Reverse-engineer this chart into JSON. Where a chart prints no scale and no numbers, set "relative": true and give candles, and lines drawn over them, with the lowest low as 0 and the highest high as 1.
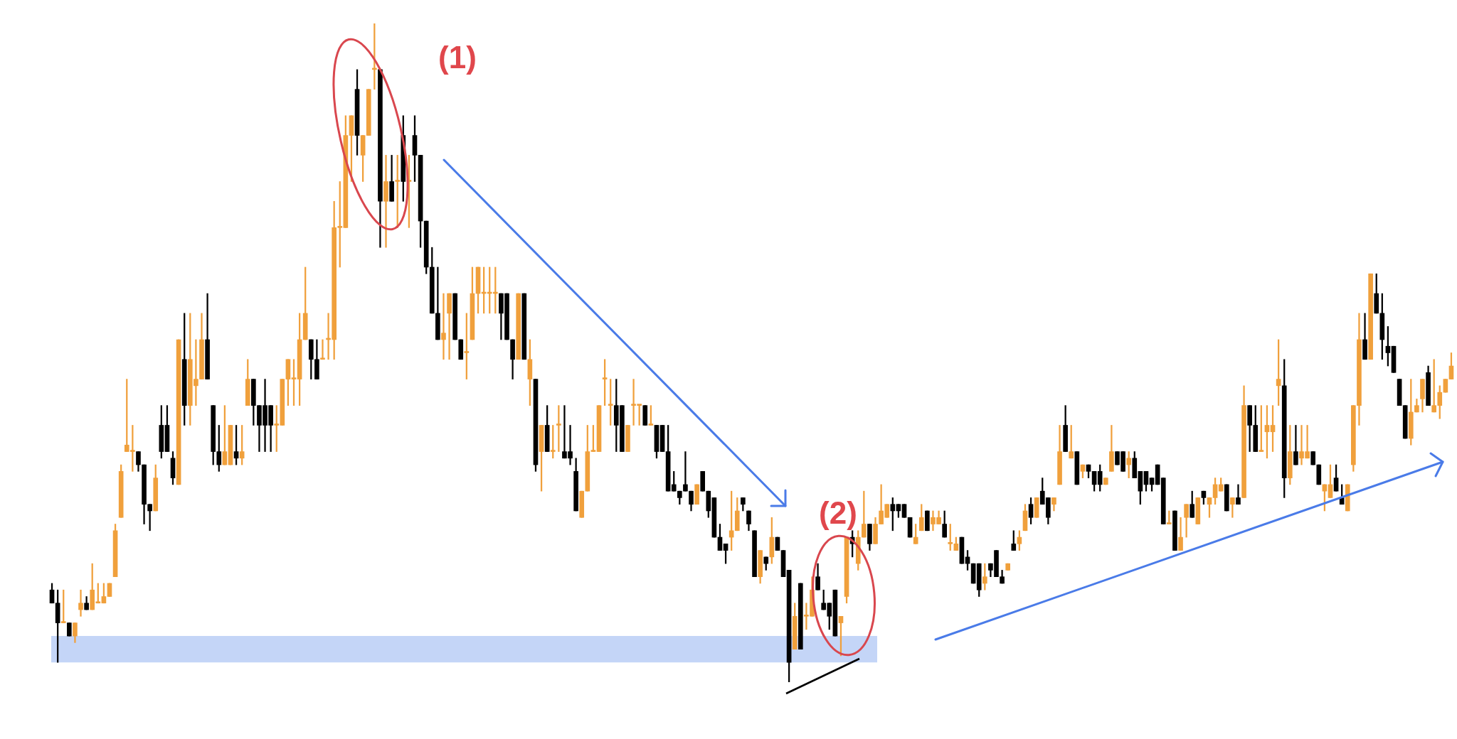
{
  "chart_data": {
    "type": "candlestick",
    "relative": true,
    "tick_labels": false,
    "categories": [
      null,
      null,
      null,
      null,
      null,
      null,
      null,
      null,
      null,
      null,
      null,
      null,
      null,
      null,
      null,
      null,
      null,
      null,
      null,
      null,
      null,
      null,
      null,
      null,
      null,
      null,
      null,
      null,
      null,
      null,
      null,
      null,
      null,
      null,
      null,
      null,
      null,
      null,
      null,
      null,
      null,
      null,
      null,
      null,
      null,
      null,
      null,
      null,
      null,
      null,
      null,
      null,
      null,
      null,
      null,
      null,
      null,
      null,
      null,
      null,
      null,
      null,
      null,
      null,
      null,
      null,
      null,
      null,
      null,
      null,
      null,
      null,
      null,
      null,
      null,
      null,
      null,
      null,
      null,
      null,
      null,
      null,
      null,
      null,
      null,
      null,
      null,
      null,
      null,
      null,
      null,
      null,
      null,
      null,
      null,
      null,
      null,
      null,
      null,
      null,
      null,
      null,
      null,
      null,
      null,
      null,
      null,
      null,
      null,
      null,
      null,
      null,
      null,
      null,
      null,
      null,
      null,
      null,
      null,
      null,
      null,
      null,
      null,
      null,
      null,
      null,
      null,
      null,
      null,
      null,
      null,
      null,
      null,
      null,
      null,
      null,
      null,
      null,
      null,
      null,
      null,
      null,
      null,
      null,
      null,
      null,
      null,
      null,
      null,
      null,
      null,
      null,
      null,
      null,
      null,
      null,
      null,
      null,
      null,
      null,
      null,
      null,
      null,
      null,
      null,
      null,
      null,
      null,
      null,
      null,
      null,
      null,
      null,
      null,
      null,
      null,
      null,
      null,
      null,
      null,
      null,
      null,
      null,
      null,
      null,
      null,
      null,
      null,
      null,
      null,
      null,
      null,
      null,
      null,
      null,
      null,
      null,
      null,
      null,
      null,
      null,
      null,
      null,
      null,
      null,
      null,
      null,
      null,
      null,
      null,
      null,
      null,
      null,
      null,
      null,
      null,
      null,
      null,
      null,
      null,
      null,
      null,
      null,
      null,
      null,
      null,
      null,
      null,
      null,
      null,
      null,
      null,
      null,
      null,
      null,
      null,
      null,
      null,
      null,
      null,
      null,
      null,
      null,
      null
    ],
    "ohlc": [
      [
        0.14,
        0.15,
        0.12,
        0.12
      ],
      [
        0.12,
        0.14,
        0.03,
        0.09
      ],
      [
        0.09,
        0.14,
        0.09,
        0.09
      ],
      [
        0.09,
        0.09,
        0.07,
        0.07
      ],
      [
        0.07,
        0.09,
        0.06,
        0.09
      ],
      [
        0.11,
        0.14,
        0.1,
        0.12
      ],
      [
        0.12,
        0.13,
        0.11,
        0.11
      ],
      [
        0.11,
        0.18,
        0.11,
        0.14
      ],
      [
        0.12,
        0.15,
        0.12,
        0.12
      ],
      [
        0.12,
        0.15,
        0.12,
        0.13
      ],
      [
        0.13,
        0.15,
        0.13,
        0.15
      ],
      [
        0.16,
        0.24,
        0.16,
        0.23
      ],
      [
        0.25,
        0.33,
        0.25,
        0.32
      ],
      [
        0.35,
        0.46,
        0.35,
        0.36
      ],
      [
        0.35,
        0.39,
        0.32,
        0.35
      ],
      [
        0.35,
        0.35,
        0.32,
        0.33
      ],
      [
        0.33,
        0.33,
        0.24,
        0.27
      ],
      [
        0.27,
        0.27,
        0.23,
        0.26
      ],
      [
        0.26,
        0.33,
        0.26,
        0.31
      ],
      [
        0.39,
        0.42,
        0.34,
        0.35
      ],
      [
        0.39,
        0.42,
        0.35,
        0.35
      ],
      [
        0.34,
        0.35,
        0.3,
        0.31
      ],
      [
        0.3,
        0.52,
        0.3,
        0.52
      ],
      [
        0.49,
        0.56,
        0.39,
        0.42
      ],
      [
        0.42,
        0.56,
        0.39,
        0.49
      ],
      [
        0.45,
        0.52,
        0.42,
        0.46
      ],
      [
        0.46,
        0.56,
        0.46,
        0.52
      ],
      [
        0.52,
        0.59,
        0.46,
        0.46
      ],
      [
        0.42,
        0.42,
        0.33,
        0.35
      ],
      [
        0.35,
        0.39,
        0.32,
        0.33
      ],
      [
        0.33,
        0.42,
        0.33,
        0.35
      ],
      [
        0.33,
        0.39,
        0.33,
        0.39
      ],
      [
        0.35,
        0.39,
        0.33,
        0.34
      ],
      [
        0.34,
        0.39,
        0.33,
        0.35
      ],
      [
        0.42,
        0.49,
        0.42,
        0.46
      ],
      [
        0.46,
        0.46,
        0.39,
        0.42
      ],
      [
        0.42,
        0.42,
        0.35,
        0.39
      ],
      [
        0.42,
        0.46,
        0.35,
        0.39
      ],
      [
        0.42,
        0.42,
        0.35,
        0.39
      ],
      [
        0.39,
        0.42,
        0.35,
        0.39
      ],
      [
        0.39,
        0.46,
        0.39,
        0.46
      ],
      [
        0.46,
        0.49,
        0.42,
        0.49
      ],
      [
        0.46,
        0.49,
        0.42,
        0.46
      ],
      [
        0.46,
        0.56,
        0.42,
        0.52
      ],
      [
        0.52,
        0.63,
        0.52,
        0.56
      ],
      [
        0.52,
        0.52,
        0.46,
        0.49
      ],
      [
        0.49,
        0.52,
        0.46,
        0.46
      ],
      [
        0.49,
        0.52,
        0.49,
        0.49
      ],
      [
        0.52,
        0.56,
        0.49,
        0.52
      ],
      [
        0.52,
        0.73,
        0.49,
        0.69
      ],
      [
        0.69,
        0.76,
        0.63,
        0.69
      ],
      [
        0.69,
        0.86,
        0.69,
        0.83
      ],
      [
        0.83,
        0.86,
        0.76,
        0.86
      ],
      [
        0.9,
        0.93,
        0.8,
        0.83
      ],
      [
        0.8,
        0.83,
        0.76,
        0.83
      ],
      [
        0.83,
        0.9,
        0.83,
        0.9
      ],
      [
        0.93,
        1.0,
        0.9,
        0.93
      ],
      [
        0.93,
        0.93,
        0.66,
        0.73
      ],
      [
        0.73,
        0.8,
        0.66,
        0.76
      ],
      [
        0.76,
        0.8,
        0.73,
        0.73
      ],
      [
        0.76,
        0.8,
        0.69,
        0.76
      ],
      [
        0.83,
        0.86,
        0.73,
        0.76
      ],
      [
        0.76,
        0.8,
        0.69,
        0.76
      ],
      [
        0.83,
        0.86,
        0.76,
        0.8
      ],
      [
        0.8,
        0.8,
        0.66,
        0.7
      ],
      [
        0.7,
        0.7,
        0.62,
        0.63
      ],
      [
        0.63,
        0.66,
        0.56,
        0.56
      ],
      [
        0.56,
        0.63,
        0.52,
        0.52
      ],
      [
        0.52,
        0.59,
        0.49,
        0.53
      ],
      [
        0.56,
        0.59,
        0.49,
        0.59
      ],
      [
        0.59,
        0.59,
        0.52,
        0.52
      ],
      [
        0.52,
        0.52,
        0.49,
        0.49
      ],
      [
        0.5,
        0.56,
        0.46,
        0.5
      ],
      [
        0.52,
        0.63,
        0.52,
        0.59
      ],
      [
        0.59,
        0.63,
        0.56,
        0.63
      ],
      [
        0.59,
        0.63,
        0.56,
        0.59
      ],
      [
        0.59,
        0.63,
        0.56,
        0.59
      ],
      [
        0.59,
        0.63,
        0.56,
        0.59
      ],
      [
        0.59,
        0.59,
        0.52,
        0.56
      ],
      [
        0.59,
        0.59,
        0.52,
        0.52
      ],
      [
        0.52,
        0.52,
        0.46,
        0.49
      ],
      [
        0.49,
        0.59,
        0.49,
        0.59
      ],
      [
        0.59,
        0.59,
        0.49,
        0.49
      ],
      [
        0.46,
        0.52,
        0.42,
        0.49
      ],
      [
        0.46,
        0.46,
        0.32,
        0.33
      ],
      [
        0.35,
        0.39,
        0.29,
        0.39
      ],
      [
        0.39,
        0.42,
        0.35,
        0.35
      ],
      [
        0.35,
        0.39,
        0.34,
        0.35
      ],
      [
        0.39,
        0.42,
        0.35,
        0.39
      ],
      [
        0.35,
        0.42,
        0.34,
        0.34
      ],
      [
        0.35,
        0.39,
        0.33,
        0.34
      ],
      [
        0.32,
        0.34,
        0.26,
        0.26
      ],
      [
        0.25,
        0.29,
        0.25,
        0.29
      ],
      [
        0.29,
        0.39,
        0.29,
        0.35
      ],
      [
        0.35,
        0.39,
        0.35,
        0.35
      ],
      [
        0.35,
        0.42,
        0.35,
        0.42
      ],
      [
        0.46,
        0.49,
        0.42,
        0.46
      ],
      [
        0.42,
        0.46,
        0.39,
        0.42
      ],
      [
        0.42,
        0.46,
        0.35,
        0.39
      ],
      [
        0.42,
        0.42,
        0.35,
        0.35
      ],
      [
        0.35,
        0.39,
        0.35,
        0.39
      ],
      [
        0.42,
        0.46,
        0.39,
        0.42
      ],
      [
        0.42,
        0.42,
        0.39,
        0.42
      ],
      [
        0.42,
        0.42,
        0.39,
        0.39
      ],
      [
        0.39,
        0.42,
        0.39,
        0.39
      ],
      [
        0.39,
        0.39,
        0.34,
        0.35
      ],
      [
        0.39,
        0.39,
        0.35,
        0.35
      ],
      [
        0.35,
        0.39,
        0.29,
        0.29
      ],
      [
        0.3,
        0.32,
        0.29,
        0.29
      ],
      [
        0.29,
        0.29,
        0.27,
        0.28
      ],
      [
        0.3,
        0.35,
        0.29,
        0.29
      ],
      [
        0.29,
        0.29,
        0.26,
        0.27
      ],
      [
        0.27,
        0.3,
        0.27,
        0.3
      ],
      [
        0.32,
        0.32,
        0.29,
        0.29
      ],
      [
        0.29,
        0.29,
        0.25,
        0.26
      ],
      [
        0.28,
        0.28,
        0.22,
        0.22
      ],
      [
        0.22,
        0.24,
        0.2,
        0.2
      ],
      [
        0.21,
        0.21,
        0.18,
        0.2
      ],
      [
        0.22,
        0.29,
        0.2,
        0.23
      ],
      [
        0.23,
        0.28,
        0.23,
        0.26
      ],
      [
        0.28,
        0.28,
        0.26,
        0.27
      ],
      [
        0.26,
        0.26,
        0.23,
        0.24
      ],
      [
        0.23,
        0.23,
        0.16,
        0.16
      ],
      [
        0.16,
        0.2,
        0.15,
        0.2
      ],
      [
        0.19,
        0.19,
        0.17,
        0.18
      ],
      [
        0.19,
        0.25,
        0.18,
        0.22
      ],
      [
        0.22,
        0.22,
        0.2,
        0.2
      ],
      [
        0.2,
        0.2,
        0.16,
        0.16
      ],
      [
        0.17,
        0.17,
        0,
        0.03
      ],
      [
        0.05,
        0.12,
        0.05,
        0.1
      ],
      [
        0.15,
        0.15,
        0.05,
        0.05
      ],
      [
        0.1,
        0.12,
        0.08,
        0.1
      ],
      [
        0.1,
        0.16,
        0.1,
        0.14
      ],
      [
        0.16,
        0.18,
        0.14,
        0.14
      ],
      [
        0.12,
        0.14,
        0.11,
        0.11
      ],
      [
        0.12,
        0.12,
        0.08,
        0.1
      ],
      [
        0.14,
        0.14,
        0.07,
        0.07
      ],
      [
        0.09,
        0.1,
        0.04,
        0.1
      ],
      [
        0.13,
        0.22,
        0.12,
        0.22
      ],
      [
        0.22,
        0.23,
        0.19,
        0.21
      ],
      [
        0.18,
        0.23,
        0.17,
        0.22
      ],
      [
        0.22,
        0.29,
        0.22,
        0.24
      ],
      [
        0.24,
        0.24,
        0.2,
        0.21
      ],
      [
        0.21,
        0.25,
        0.21,
        0.24
      ],
      [
        0.24,
        0.3,
        0.24,
        0.26
      ],
      [
        0.25,
        0.27,
        0.25,
        0.27
      ],
      [
        0.27,
        0.28,
        0.23,
        0.26
      ],
      [
        0.27,
        0.27,
        0.25,
        0.26
      ],
      [
        0.27,
        0.27,
        0.25,
        0.25
      ],
      [
        0.25,
        0.25,
        0.22,
        0.22
      ],
      [
        0.21,
        0.24,
        0.21,
        0.22
      ],
      [
        0.23,
        0.27,
        0.23,
        0.25
      ],
      [
        0.26,
        0.26,
        0.23,
        0.23
      ],
      [
        0.24,
        0.26,
        0.23,
        0.25
      ],
      [
        0.24,
        0.26,
        0.24,
        0.25
      ],
      [
        0.24,
        0.26,
        0.22,
        0.22
      ],
      [
        0.21,
        0.24,
        0.2,
        0.21
      ],
      [
        0.2,
        0.22,
        0.2,
        0.21
      ],
      [
        0.22,
        0.22,
        0.18,
        0.18
      ],
      [
        0.19,
        0.2,
        0.17,
        0.18
      ],
      [
        0.18,
        0.18,
        0.15,
        0.15
      ],
      [
        0.18,
        0.18,
        0.13,
        0.14
      ],
      [
        0.15,
        0.18,
        0.14,
        0.16
      ],
      [
        0.18,
        0.18,
        0.16,
        0.17
      ],
      [
        0.2,
        0.2,
        0.16,
        0.16
      ],
      [
        0.16,
        0.17,
        0.15,
        0.15
      ],
      [
        0.17,
        0.18,
        0.17,
        0.18
      ],
      [
        0.21,
        0.23,
        0.2,
        0.2
      ],
      [
        0.21,
        0.23,
        0.2,
        0.22
      ],
      [
        0.23,
        0.27,
        0.23,
        0.26
      ],
      [
        0.27,
        0.28,
        0.24,
        0.25
      ],
      [
        0.25,
        0.28,
        0.25,
        0.28
      ],
      [
        0.29,
        0.31,
        0.27,
        0.27
      ],
      [
        0.28,
        0.28,
        0.24,
        0.25
      ],
      [
        0.27,
        0.28,
        0.26,
        0.28
      ],
      [
        0.3,
        0.39,
        0.3,
        0.35
      ],
      [
        0.39,
        0.42,
        0.35,
        0.35
      ],
      [
        0.34,
        0.39,
        0.34,
        0.35
      ],
      [
        0.35,
        0.35,
        0.3,
        0.3
      ],
      [
        0.32,
        0.33,
        0.31,
        0.33
      ],
      [
        0.33,
        0.33,
        0.31,
        0.32
      ],
      [
        0.32,
        0.32,
        0.29,
        0.3
      ],
      [
        0.32,
        0.33,
        0.29,
        0.3
      ],
      [
        0.3,
        0.31,
        0.3,
        0.31
      ],
      [
        0.32,
        0.39,
        0.32,
        0.35
      ],
      [
        0.35,
        0.35,
        0.33,
        0.33
      ],
      [
        0.35,
        0.35,
        0.32,
        0.32
      ],
      [
        0.33,
        0.35,
        0.31,
        0.34
      ],
      [
        0.34,
        0.35,
        0.31,
        0.31
      ],
      [
        0.32,
        0.32,
        0.27,
        0.29
      ],
      [
        0.32,
        0.32,
        0.29,
        0.3
      ],
      [
        0.31,
        0.31,
        0.29,
        0.3
      ],
      [
        0.33,
        0.33,
        0.3,
        0.3
      ],
      [
        0.31,
        0.31,
        0.24,
        0.24
      ],
      [
        0.24,
        0.26,
        0.24,
        0.24
      ],
      [
        0.26,
        0.26,
        0.2,
        0.2
      ],
      [
        0.2,
        0.25,
        0.2,
        0.22
      ],
      [
        0.25,
        0.27,
        0.22,
        0.27
      ],
      [
        0.27,
        0.29,
        0.25,
        0.25
      ],
      [
        0.24,
        0.28,
        0.24,
        0.28
      ],
      [
        0.29,
        0.29,
        0.27,
        0.28
      ],
      [
        0.27,
        0.28,
        0.25,
        0.28
      ],
      [
        0.28,
        0.31,
        0.27,
        0.3
      ],
      [
        0.29,
        0.31,
        0.29,
        0.3
      ],
      [
        0.3,
        0.3,
        0.26,
        0.26
      ],
      [
        0.27,
        0.28,
        0.25,
        0.28
      ],
      [
        0.28,
        0.3,
        0.27,
        0.27
      ],
      [
        0.28,
        0.45,
        0.28,
        0.42
      ],
      [
        0.42,
        0.42,
        0.35,
        0.39
      ],
      [
        0.39,
        0.42,
        0.35,
        0.35
      ],
      [
        0.35,
        0.42,
        0.35,
        0.35
      ],
      [
        0.38,
        0.42,
        0.34,
        0.39
      ],
      [
        0.38,
        0.42,
        0.35,
        0.39
      ],
      [
        0.45,
        0.52,
        0.42,
        0.46
      ],
      [
        0.45,
        0.49,
        0.28,
        0.31
      ],
      [
        0.31,
        0.39,
        0.3,
        0.35
      ],
      [
        0.35,
        0.39,
        0.33,
        0.33
      ],
      [
        0.34,
        0.39,
        0.33,
        0.35
      ],
      [
        0.34,
        0.39,
        0.34,
        0.35
      ],
      [
        0.35,
        0.35,
        0.33,
        0.33
      ],
      [
        0.33,
        0.33,
        0.3,
        0.3
      ],
      [
        0.29,
        0.3,
        0.26,
        0.3
      ],
      [
        0.28,
        0.33,
        0.28,
        0.3
      ],
      [
        0.31,
        0.33,
        0.29,
        0.29
      ],
      [
        0.28,
        0.3,
        0.27,
        0.27
      ],
      [
        0.26,
        0.3,
        0.26,
        0.3
      ],
      [
        0.33,
        0.42,
        0.32,
        0.42
      ],
      [
        0.42,
        0.56,
        0.39,
        0.52
      ],
      [
        0.52,
        0.56,
        0.49,
        0.49
      ],
      [
        0.49,
        0.62,
        0.49,
        0.62
      ],
      [
        0.59,
        0.62,
        0.56,
        0.56
      ],
      [
        0.56,
        0.59,
        0.49,
        0.52
      ],
      [
        0.51,
        0.54,
        0.48,
        0.5
      ],
      [
        0.51,
        0.51,
        0.47,
        0.47
      ],
      [
        0.46,
        0.46,
        0.42,
        0.42
      ],
      [
        0.42,
        0.42,
        0.37,
        0.37
      ],
      [
        0.37,
        0.46,
        0.36,
        0.41
      ],
      [
        0.41,
        0.43,
        0.41,
        0.42
      ],
      [
        0.43,
        0.46,
        0.41,
        0.46
      ],
      [
        0.47,
        0.48,
        0.42,
        0.42
      ],
      [
        0.41,
        0.49,
        0.41,
        0.42
      ],
      [
        0.42,
        0.45,
        0.4,
        0.44
      ],
      [
        0.44,
        0.46,
        0.44,
        0.46
      ],
      [
        0.46,
        0.5,
        0.46,
        0.48
      ]
    ],
    "colors": [
      "#000000",
      "#000000",
      "#f0a03c",
      "#000000",
      "#f0a03c",
      "#f0a03c",
      "#000000",
      "#f0a03c",
      "#f0a03c",
      "#f0a03c",
      "#f0a03c",
      "#f0a03c",
      "#f0a03c",
      "#f0a03c",
      "#f0a03c",
      "#000000",
      "#000000",
      "#000000",
      "#f0a03c",
      "#000000",
      "#000000",
      "#000000",
      "#f0a03c",
      "#000000",
      "#f0a03c",
      "#f0a03c",
      "#f0a03c",
      "#000000",
      "#000000",
      "#000000",
      "#f0a03c",
      "#f0a03c",
      "#000000",
      "#f0a03c",
      "#f0a03c",
      "#000000",
      "#000000",
      "#000000",
      "#000000",
      "#f0a03c",
      "#f0a03c",
      "#f0a03c",
      "#f0a03c",
      "#f0a03c",
      "#f0a03c",
      "#000000",
      "#000000",
      "#f0a03c",
      "#f0a03c",
      "#f0a03c",
      "#f0a03c",
      "#f0a03c",
      "#f0a03c",
      "#000000",
      "#f0a03c",
      "#f0a03c",
      "#f0a03c",
      "#000000",
      "#f0a03c",
      "#000000",
      "#f0a03c",
      "#000000",
      "#f0a03c",
      "#000000",
      "#000000",
      "#000000",
      "#000000",
      "#000000",
      "#f0a03c",
      "#f0a03c",
      "#000000",
      "#000000",
      "#f0a03c",
      "#f0a03c",
      "#f0a03c",
      "#f0a03c",
      "#f0a03c",
      "#f0a03c",
      "#000000",
      "#000000",
      "#000000",
      "#f0a03c",
      "#000000",
      "#f0a03c",
      "#000000",
      "#f0a03c",
      "#000000",
      "#f0a03c",
      "#f0a03c",
      "#000000",
      "#000000",
      "#000000",
      "#f0a03c",
      "#f0a03c",
      "#f0a03c",
      "#f0a03c",
      "#f0a03c",
      "#f0a03c",
      "#000000",
      "#000000",
      "#f0a03c",
      "#f0a03c",
      "#f0a03c",
      "#000000",
      "#f0a03c",
      "#000000",
      "#000000",
      "#000000",
      "#000000",
      "#000000",
      "#000000",
      "#000000",
      "#f0a03c",
      "#000000",
      "#000000",
      "#000000",
      "#000000",
      "#000000",
      "#f0a03c",
      "#f0a03c",
      "#000000",
      "#000000",
      "#000000",
      "#f0a03c",
      "#000000",
      "#f0a03c",
      "#000000",
      "#000000",
      "#000000",
      "#f0a03c",
      "#000000",
      "#f0a03c",
      "#f0a03c",
      "#000000",
      "#000000",
      "#000000",
      "#000000",
      "#f0a03c",
      "#f0a03c",
      "#000000",
      "#f0a03c",
      "#f0a03c",
      "#000000",
      "#f0a03c",
      "#f0a03c",
      "#f0a03c",
      "#000000",
      "#000000",
      "#000000",
      "#000000",
      "#f0a03c",
      "#f0a03c",
      "#000000",
      "#f0a03c",
      "#f0a03c",
      "#000000",
      "#f0a03c",
      "#f0a03c",
      "#000000",
      "#000000",
      "#000000",
      "#000000",
      "#f0a03c",
      "#000000",
      "#000000",
      "#000000",
      "#f0a03c",
      "#000000",
      "#f0a03c",
      "#f0a03c",
      "#000000",
      "#f0a03c",
      "#000000",
      "#000000",
      "#f0a03c",
      "#f0a03c",
      "#000000",
      "#f0a03c",
      "#000000",
      "#f0a03c",
      "#000000",
      "#000000",
      "#000000",
      "#f0a03c",
      "#f0a03c",
      "#000000",
      "#000000",
      "#f0a03c",
      "#000000",
      "#000000",
      "#000000",
      "#000000",
      "#000000",
      "#000000",
      "#f0a03c",
      "#000000",
      "#f0a03c",
      "#f0a03c",
      "#000000",
      "#f0a03c",
      "#000000",
      "#f0a03c",
      "#f0a03c",
      "#f0a03c",
      "#000000",
      "#f0a03c",
      "#000000",
      "#f0a03c",
      "#000000",
      "#000000",
      "#f0a03c",
      "#f0a03c",
      "#f0a03c",
      "#f0a03c",
      "#000000",
      "#f0a03c",
      "#000000",
      "#f0a03c",
      "#f0a03c",
      "#000000",
      "#000000",
      "#f0a03c",
      "#f0a03c",
      "#000000",
      "#000000",
      "#f0a03c",
      "#f0a03c",
      "#f0a03c",
      "#000000",
      "#f0a03c",
      "#000000",
      "#000000",
      "#000000",
      "#000000",
      "#000000",
      "#000000",
      "#f0a03c",
      "#f0a03c",
      "#f0a03c",
      "#000000",
      "#f0a03c",
      "#f0a03c",
      "#f0a03c",
      "#f0a03c"
    ],
    "bands": [
      {
        "axis": "y",
        "from": 0.03,
        "to": 0.07,
        "color": "#c4d5f7"
      }
    ],
    "annotations": [
      "(1)",
      "(2)"
    ]
  }
}
